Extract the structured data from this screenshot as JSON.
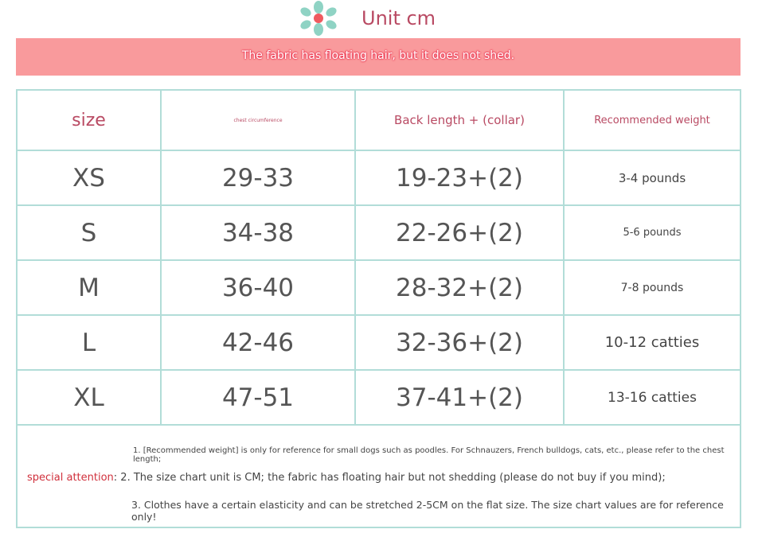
{
  "header": {
    "title": "Unit cm",
    "banner": "The fabric has floating hair, but it does not shed.",
    "logo": "flower-icon"
  },
  "table": {
    "headers": [
      "size",
      "chest circumference",
      "Back length + (collar)",
      "Recommended weight"
    ],
    "rows": [
      [
        "XS",
        "29-33",
        "19-23+(2)",
        "3-4 pounds"
      ],
      [
        "S",
        "34-38",
        "22-26+(2)",
        "5-6 pounds"
      ],
      [
        "M",
        "36-40",
        "28-32+(2)",
        "7-8 pounds"
      ],
      [
        "L",
        "42-46",
        "32-36+(2)",
        "10-12 catties"
      ],
      [
        "XL",
        "47-51",
        "37-41+(2)",
        "13-16 catties"
      ]
    ]
  },
  "notes": {
    "n1": "1. [Recommended weight] is only for reference for small dogs such as poodles. For Schnauzers, French bulldogs, cats, etc., please refer to the chest length;",
    "label": "special attention",
    "n2": ": 2. The size chart unit is CM; the fabric has floating hair but not shedding (please do not buy if you mind);",
    "n3": "3. Clothes have a certain elasticity and can be stretched 2-5CM on the flat size. The size chart values are for reference only!"
  },
  "colors": {
    "accent": "#b94a63",
    "banner": "#f99a9c",
    "border": "#b2ddd8"
  }
}
